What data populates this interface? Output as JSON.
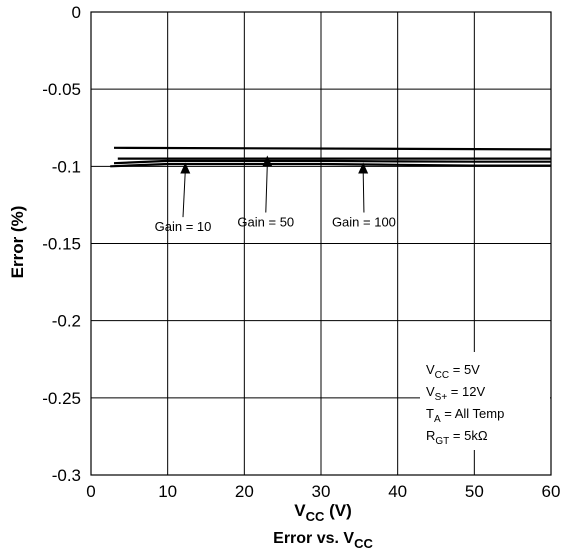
{
  "chart_data": {
    "type": "line",
    "title": "",
    "caption": "Error vs. V",
    "caption_sub": "CC",
    "xlabel": "V",
    "xlabel_sub": "CC",
    "xlabel_unit": " (V)",
    "ylabel": "Error (%)",
    "xlim": [
      0,
      60
    ],
    "ylim": [
      -0.3,
      0
    ],
    "x_ticks": [
      0,
      10,
      20,
      30,
      40,
      50,
      60
    ],
    "x_tick_labels": [
      "0",
      "10",
      "20",
      "30",
      "40",
      "50",
      "60"
    ],
    "y_ticks": [
      0,
      -0.05,
      -0.1,
      -0.15,
      -0.2,
      -0.25,
      -0.3
    ],
    "y_tick_labels": [
      "0",
      "-0.05",
      "-0.1",
      "-0.15",
      "-0.2",
      "-0.25",
      "-0.3"
    ],
    "grid": true,
    "line_color": "#000000",
    "series": [
      {
        "x": [
          3,
          60
        ],
        "y": [
          -0.088,
          -0.089
        ]
      },
      {
        "x": [
          3.5,
          10,
          20,
          30,
          40,
          50,
          60
        ],
        "y": [
          -0.095,
          -0.095,
          -0.095,
          -0.095,
          -0.095,
          -0.095,
          -0.095
        ]
      },
      {
        "x": [
          3,
          10,
          20,
          30,
          40,
          50,
          60
        ],
        "y": [
          -0.098,
          -0.0965,
          -0.0965,
          -0.0965,
          -0.0968,
          -0.097,
          -0.097
        ]
      },
      {
        "x": [
          2.5,
          10,
          20,
          30,
          40,
          50,
          60
        ],
        "y": [
          -0.1,
          -0.0985,
          -0.0985,
          -0.0985,
          -0.099,
          -0.0995,
          -0.0995
        ]
      }
    ],
    "annotations": [
      {
        "text": "Gain = 10",
        "label_x": 12,
        "label_y": -0.142,
        "arrow_x": 12.3,
        "arrow_y": -0.0975
      },
      {
        "text": "Gain = 50",
        "label_x": 22.8,
        "label_y": -0.139,
        "arrow_x": 23.0,
        "arrow_y": -0.093
      },
      {
        "text": "Gain = 100",
        "label_x": 35.6,
        "label_y": -0.139,
        "arrow_x": 35.5,
        "arrow_y": -0.0975
      }
    ],
    "conditions": [
      {
        "main": "V",
        "sub": "CC",
        "rest": " = 5V"
      },
      {
        "main": "V",
        "sub": "S+",
        "rest": " = 12V"
      },
      {
        "main": "T",
        "sub": "A",
        "rest": " = All Temp"
      },
      {
        "main": "R",
        "sub": "GT",
        "rest": " = 5kΩ"
      }
    ]
  }
}
